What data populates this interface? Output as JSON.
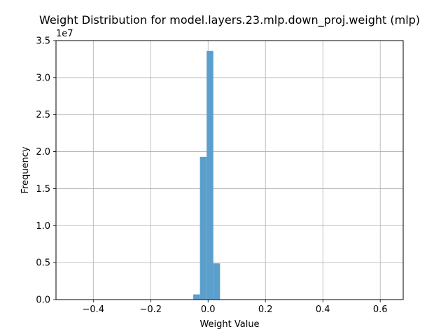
{
  "chart_data": {
    "type": "bar",
    "title": "Weight Distribution for model.layers.23.mlp.down_proj.weight (mlp)",
    "xlabel": "Weight Value",
    "ylabel": "Frequency",
    "y_multiplier_label": "1e7",
    "xlim": [
      -0.53,
      0.68
    ],
    "ylim": [
      0,
      3.5
    ],
    "x_ticks": [
      -0.4,
      -0.2,
      0.0,
      0.2,
      0.4,
      0.6
    ],
    "x_tick_labels": [
      "−0.4",
      "−0.2",
      "0.0",
      "0.2",
      "0.4",
      "0.6"
    ],
    "y_ticks": [
      0.0,
      0.5,
      1.0,
      1.5,
      2.0,
      2.5,
      3.0,
      3.5
    ],
    "y_tick_labels": [
      "0.0",
      "0.5",
      "1.0",
      "1.5",
      "2.0",
      "2.5",
      "3.0",
      "3.5"
    ],
    "grid": true,
    "bar_color": "#5b9fcc",
    "bins": [
      {
        "x0": -0.0516,
        "x1": -0.0283,
        "value": 0.07
      },
      {
        "x0": -0.0283,
        "x1": -0.005,
        "value": 1.93
      },
      {
        "x0": -0.005,
        "x1": 0.0183,
        "value": 3.36
      },
      {
        "x0": 0.0183,
        "x1": 0.0416,
        "value": 0.49
      }
    ]
  }
}
